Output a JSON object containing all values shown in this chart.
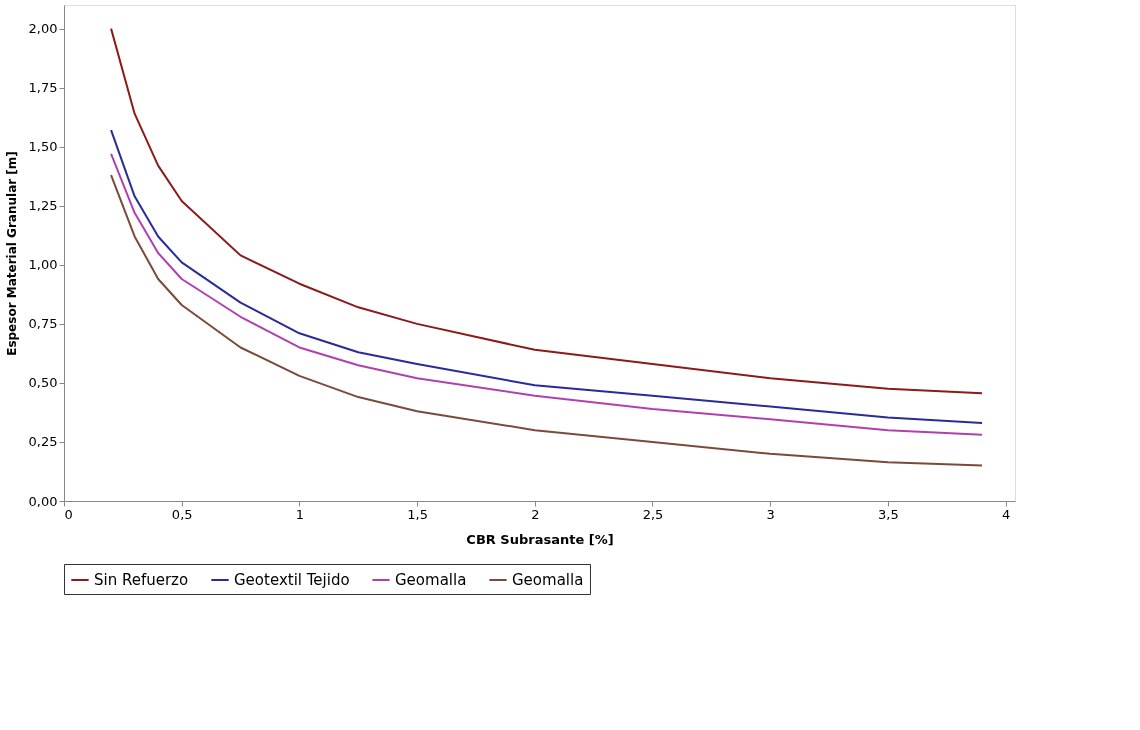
{
  "chart_data": {
    "type": "line",
    "xlabel": "CBR Subrasante [%]",
    "ylabel": "Espesor Material Granular [m]",
    "x": [
      0.2,
      0.3,
      0.4,
      0.5,
      0.75,
      1.0,
      1.25,
      1.5,
      2.0,
      2.5,
      3.0,
      3.5,
      3.9
    ],
    "series": [
      {
        "name": "Sin Refuerzo",
        "color": "#8b1a1a",
        "values": [
          2.0,
          1.64,
          1.42,
          1.27,
          1.04,
          0.92,
          0.82,
          0.75,
          0.64,
          0.58,
          0.52,
          0.475,
          0.456
        ]
      },
      {
        "name": "Geotextil Tejido",
        "color": "#2a2a9a",
        "values": [
          1.57,
          1.29,
          1.12,
          1.01,
          0.84,
          0.71,
          0.63,
          0.58,
          0.49,
          0.446,
          0.4,
          0.354,
          0.33
        ]
      },
      {
        "name": "Geomalla",
        "color": "#b040b0",
        "values": [
          1.47,
          1.22,
          1.05,
          0.94,
          0.78,
          0.65,
          0.575,
          0.52,
          0.446,
          0.39,
          0.346,
          0.3,
          0.28
        ]
      },
      {
        "name": "Geomalla",
        "color": "#7a4a3a",
        "values": [
          1.38,
          1.12,
          0.94,
          0.83,
          0.65,
          0.53,
          0.44,
          0.38,
          0.3,
          0.25,
          0.2,
          0.164,
          0.15
        ]
      }
    ],
    "xlim": [
      0,
      4.04
    ],
    "ylim": [
      0,
      2.1
    ],
    "xticks": [
      0,
      {
        "value": 0.5,
        "label": "0,5"
      },
      1,
      {
        "value": 1.5,
        "label": "1,5"
      },
      2,
      {
        "value": 2.5,
        "label": "2,5"
      },
      3,
      {
        "value": 3.5,
        "label": "3,5"
      },
      4
    ],
    "yticks": [
      {
        "value": 0,
        "label": "0,00"
      },
      {
        "value": 0.25,
        "label": "0,25"
      },
      {
        "value": 0.5,
        "label": "0,50"
      },
      {
        "value": 0.75,
        "label": "0,75"
      },
      {
        "value": 1.0,
        "label": "1,00"
      },
      {
        "value": 1.25,
        "label": "1,25"
      },
      {
        "value": 1.5,
        "label": "1,50"
      },
      {
        "value": 1.75,
        "label": "1,75"
      },
      {
        "value": 2.0,
        "label": "2,00"
      }
    ],
    "grid": false,
    "legend": "bottom",
    "marker": "none",
    "line_style": "solid"
  }
}
